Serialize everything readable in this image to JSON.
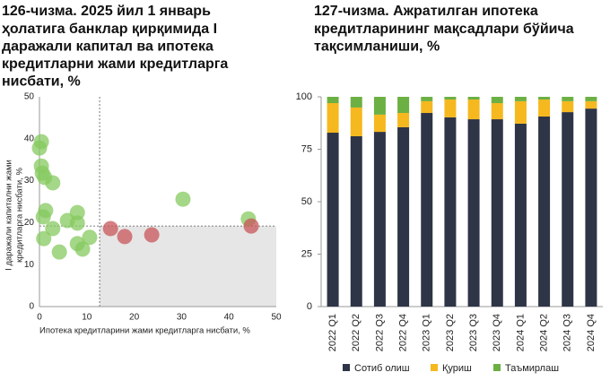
{
  "chart_data": [
    {
      "type": "scatter",
      "title": [
        "126-чизма. 2025 йил 1 январь",
        "ҳолатига банклар қирқимида I",
        "даражали капитал ва ипотека",
        "кредитларни жами кредитларга",
        "нисбати, %"
      ],
      "x_label": "Ипотека кредитларини жами кредитларга нисбати, %",
      "y_label": [
        "I даражали капитални жами",
        "кредитларга нисбати, %"
      ],
      "xlim": [
        0,
        50
      ],
      "ylim": [
        0,
        50
      ],
      "xticks": [
        0,
        10,
        20,
        30,
        40,
        50
      ],
      "yticks": [
        0,
        10,
        20,
        30,
        40,
        50
      ],
      "xline": 12.7,
      "yline": 19.2,
      "series": [
        {
          "color": "#86c95f",
          "x": [
            0.4,
            0,
            0.4,
            0.6,
            1.1,
            2.8,
            1.3,
            0.8,
            2.8,
            0.9,
            4.2,
            5.9,
            8.0,
            8.0,
            8.0,
            9.1,
            10.6,
            30.3,
            44.1
          ],
          "values": [
            39.3,
            37.8,
            33.5,
            31.8,
            30.8,
            29.5,
            22.9,
            21.4,
            18.6,
            16.2,
            13.0,
            20.5,
            22.4,
            19.9,
            15.0,
            13.7,
            16.5,
            25.6,
            20.9
          ]
        },
        {
          "color": "#c8555a",
          "x": [
            15.0,
            18.0,
            23.7,
            44.7
          ],
          "values": [
            18.6,
            16.7,
            17.1,
            19.2
          ]
        }
      ]
    },
    {
      "type": "stacked_bar",
      "title": [
        "127-чизма. Ажратилган ипотека",
        "кредитларининг мақсадлари бўйича",
        "тақсимланиши, %"
      ],
      "categories": [
        "2022 Q1",
        "2022 Q2",
        "2022 Q3",
        "2022 Q4",
        "2023 Q1",
        "2023 Q2",
        "2023 Q3",
        "2023 Q4",
        "2024 Q1",
        "2024 Q2",
        "2024 Q3",
        "2024 Q4"
      ],
      "ylim": [
        0,
        100
      ],
      "yticks": [
        0,
        25,
        50,
        75,
        100
      ],
      "series": [
        {
          "name": "Сотиб олиш",
          "color": "#2e3546",
          "values": [
            82.9,
            81.2,
            83.3,
            85.5,
            92.3,
            90.2,
            89.3,
            89.3,
            87.2,
            90.6,
            92.7,
            94.4
          ]
        },
        {
          "name": "Қуриш",
          "color": "#f6b81f",
          "values": [
            14.1,
            13.7,
            8.2,
            6.8,
            5.6,
            8.5,
            9.4,
            7.7,
            10.7,
            8.1,
            5.2,
            3.5
          ]
        },
        {
          "name": "Таъмирлаш",
          "color": "#6cb043",
          "values": [
            3.0,
            5.1,
            8.5,
            7.7,
            2.1,
            1.3,
            1.3,
            3.0,
            2.1,
            1.3,
            2.1,
            2.1
          ]
        }
      ]
    }
  ]
}
